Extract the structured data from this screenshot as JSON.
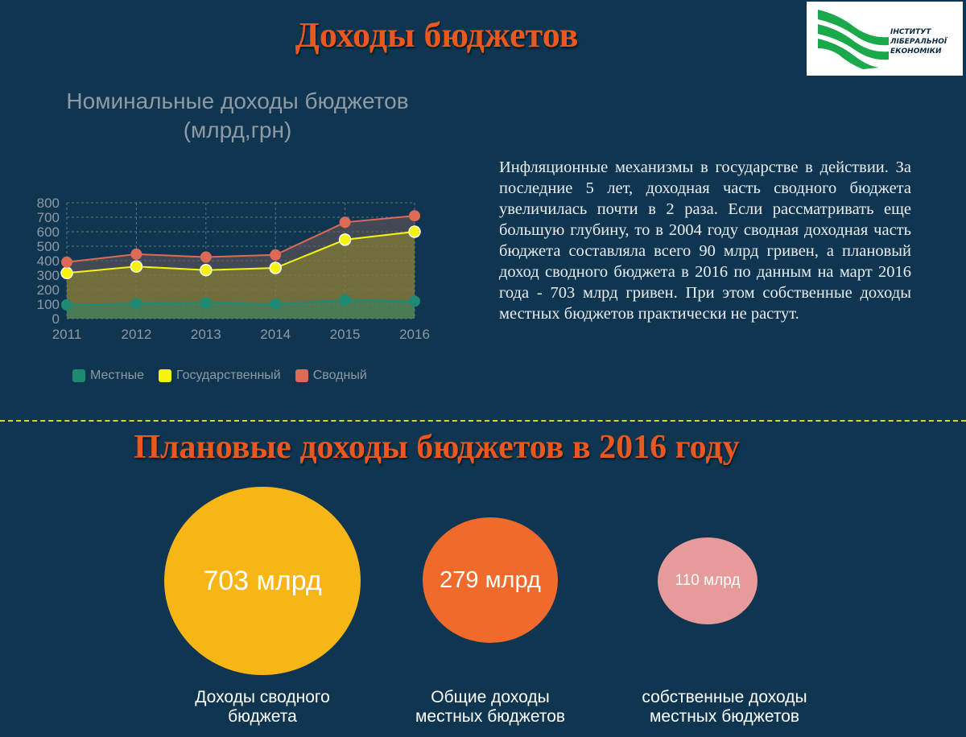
{
  "header": {
    "title": "Доходы бюджетов"
  },
  "logo": {
    "lines": [
      "ІНСТИТУТ",
      "ЛІБЕРАЛЬНОЇ",
      "ЕКОНОМІКИ"
    ],
    "color": "#1aa84a"
  },
  "chart_title": {
    "line1": "Номинальные доходы бюджетов",
    "line2": "(млрд,грн)"
  },
  "chart_data": {
    "type": "line",
    "categories": [
      "2011",
      "2012",
      "2013",
      "2014",
      "2015",
      "2016"
    ],
    "yticks": [
      "0",
      "100",
      "200",
      "300",
      "400",
      "500",
      "600",
      "700",
      "800"
    ],
    "ylim": [
      0,
      800
    ],
    "grid": true,
    "legend": "bottom",
    "series": [
      {
        "name": "Местные",
        "color": "#1f8a74",
        "values": [
          95,
          105,
          110,
          100,
          130,
          120
        ]
      },
      {
        "name": "Государственный",
        "color": "#f5f50a",
        "values": [
          315,
          360,
          335,
          350,
          545,
          600
        ]
      },
      {
        "name": "Сводный",
        "color": "#dc6a55",
        "values": [
          390,
          445,
          425,
          440,
          665,
          710
        ]
      }
    ]
  },
  "description": "Инфляционные механизмы в государстве в действии. За последние 5 лет, доходная часть сводного бюджета увеличилась почти в 2 раза. Если рассматривать еще большую глубину, то в 2004 году сводная доходная часть бюджета составляла всего 90 млрд гривен, а плановый доход сводного бюджета в 2016 по данным на март 2016 года - 703 млрд гривен. При этом собственные доходы местных бюджетов практически не растут.",
  "plan": {
    "title": "Плановые доходы бюджетов в 2016 году",
    "bubbles": [
      {
        "value": "703 млрд",
        "caption_line1": "Доходы сводного",
        "caption_line2": "бюджета",
        "color": "#f7b516"
      },
      {
        "value": "279 млрд",
        "caption_line1": "Общие доходы",
        "caption_line2": "местных бюджетов",
        "color": "#f06a2c"
      },
      {
        "value": "110 млрд",
        "caption_line1": "собственные доходы",
        "caption_line2": "местных бюджетов",
        "color": "#e79a9a"
      }
    ]
  }
}
